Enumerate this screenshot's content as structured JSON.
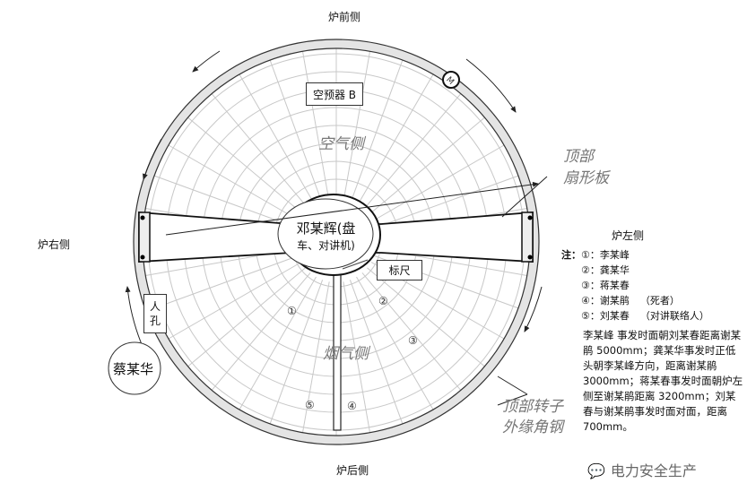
{
  "sides": {
    "front": "炉前侧",
    "back": "炉后側",
    "right": "炉右侧",
    "left": "炉左侧"
  },
  "boxes": {
    "air_preheater": "空预器 B",
    "ruler": "标尺",
    "manhole": "人\n孔"
  },
  "zones": {
    "air": "空气侧",
    "flue": "烟气侧"
  },
  "callouts": {
    "sector_plate": [
      "顶部",
      "扇形板"
    ],
    "rotor_angle": [
      "顶部转子",
      "外缘角钢"
    ]
  },
  "center_person": [
    "邓某辉(盘",
    "车、对讲机)"
  ],
  "outside_person": "蔡某华",
  "markers": [
    "①",
    "②",
    "③",
    "④",
    "⑤"
  ],
  "notes": {
    "prefix": "注：",
    "items": [
      {
        "num": "①",
        "name": "：李某峰",
        "role": ""
      },
      {
        "num": "②",
        "name": "：龚某华",
        "role": ""
      },
      {
        "num": "③",
        "name": "：蒋某春",
        "role": ""
      },
      {
        "num": "④",
        "name": "：谢某鹃",
        "role": "（死者）"
      },
      {
        "num": "⑤",
        "name": "：刘某春",
        "role": "（对讲联络人）"
      }
    ],
    "paragraph": "李某峰 事发时面朝刘某春距离谢某鹃 5000mm；龚某华事发时正低头朝李某峰方向，距离谢某鹃 3000mm；蒋某春事发时面朝炉左侧至谢某鹃距离 3200mm；刘某春与谢某鹃事发时面对面，距离 700mm。"
  },
  "watermark": "电力安全生产",
  "colors": {
    "grid": "#c8c8c8",
    "ring": "#e4e4e4",
    "zone_text": "#777777"
  }
}
